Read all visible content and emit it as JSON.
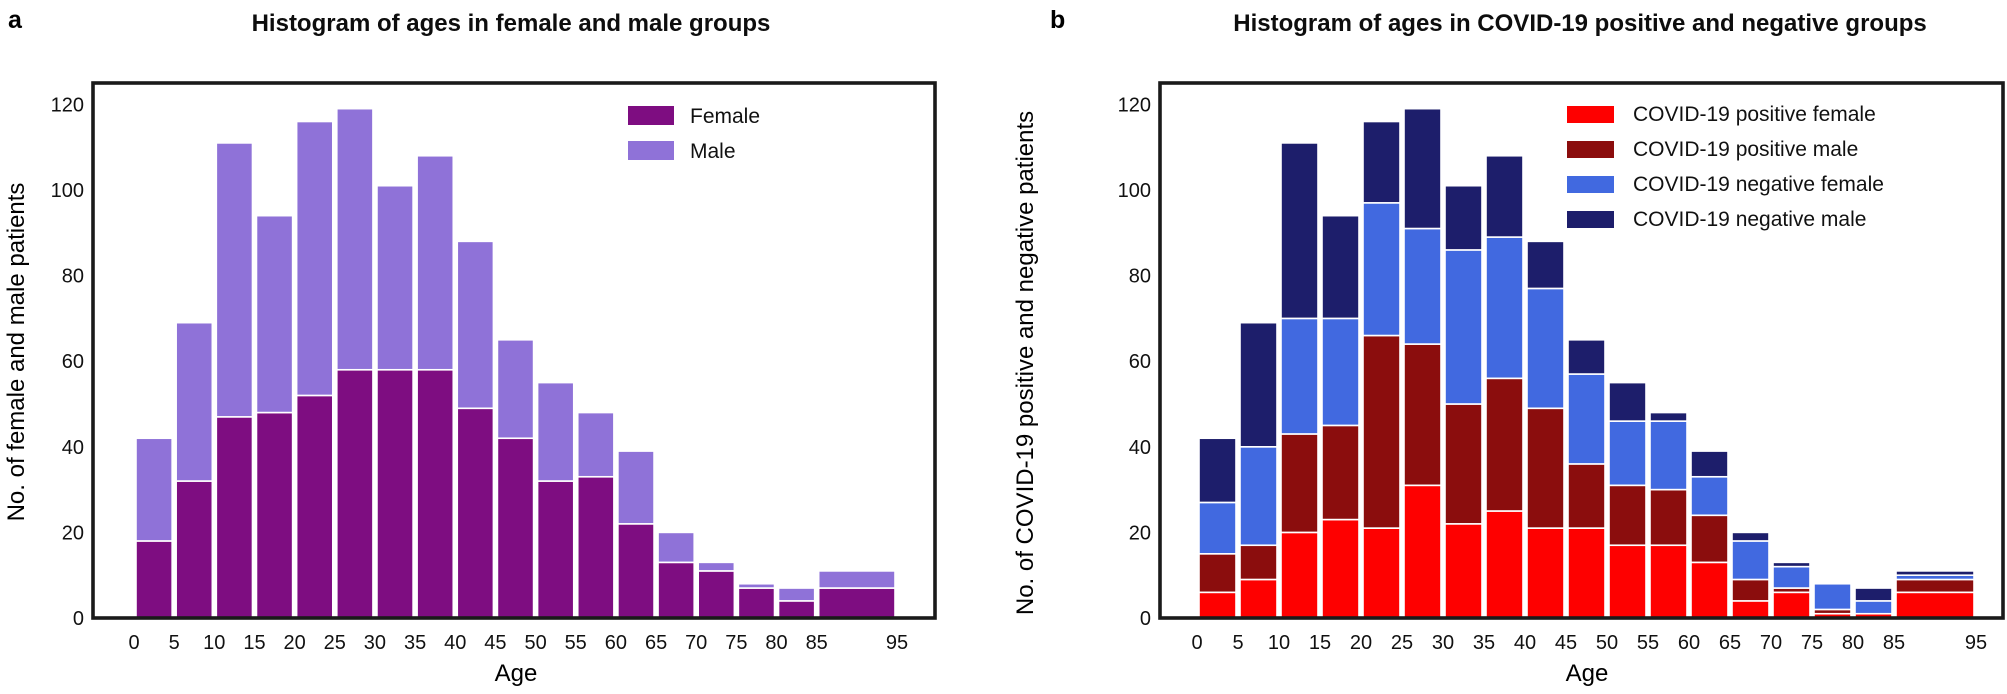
{
  "figure": {
    "background": "#ffffff",
    "frame_color": "#1a1a1a",
    "panels": [
      {
        "letter": "a",
        "title": "Histogram of ages in female and male groups"
      },
      {
        "letter": "b",
        "title": "Histogram of ages in COVID-19 positive and negative groups"
      }
    ]
  },
  "chart_data": [
    {
      "type": "bar",
      "stacked": true,
      "panel_letter": "a",
      "title": "Histogram of ages in female and male groups",
      "xlabel": "Age",
      "ylabel": "No. of female and male patients",
      "bin_edges": [
        0,
        5,
        10,
        15,
        20,
        25,
        30,
        35,
        40,
        45,
        50,
        55,
        60,
        65,
        70,
        75,
        80,
        85,
        95
      ],
      "x_tick_labels": [
        "0",
        "5",
        "10",
        "15",
        "20",
        "25",
        "30",
        "35",
        "40",
        "45",
        "50",
        "55",
        "60",
        "65",
        "70",
        "75",
        "80",
        "85",
        "95"
      ],
      "y_ticks": [
        0,
        20,
        40,
        60,
        80,
        100,
        120
      ],
      "ylim": [
        0,
        125
      ],
      "grid": false,
      "legend_position": "upper right",
      "series": [
        {
          "name": "Female",
          "color": "#7e0d81",
          "values": [
            18,
            32,
            47,
            48,
            52,
            58,
            58,
            58,
            49,
            42,
            32,
            33,
            22,
            13,
            11,
            7,
            4,
            7
          ]
        },
        {
          "name": "Male",
          "color": "#8f72d8",
          "values": [
            24,
            37,
            64,
            46,
            64,
            61,
            43,
            50,
            39,
            23,
            23,
            15,
            17,
            7,
            2,
            1,
            3,
            4
          ]
        }
      ]
    },
    {
      "type": "bar",
      "stacked": true,
      "panel_letter": "b",
      "title": "Histogram of ages in COVID-19 positive and negative groups",
      "xlabel": "Age",
      "ylabel": "No. of COVID-19 positive and negative patients",
      "bin_edges": [
        0,
        5,
        10,
        15,
        20,
        25,
        30,
        35,
        40,
        45,
        50,
        55,
        60,
        65,
        70,
        75,
        80,
        85,
        95
      ],
      "x_tick_labels": [
        "0",
        "5",
        "10",
        "15",
        "20",
        "25",
        "30",
        "35",
        "40",
        "45",
        "50",
        "55",
        "60",
        "65",
        "70",
        "75",
        "80",
        "85",
        "95"
      ],
      "y_ticks": [
        0,
        20,
        40,
        60,
        80,
        100,
        120
      ],
      "ylim": [
        0,
        125
      ],
      "grid": false,
      "legend_position": "upper right",
      "series": [
        {
          "name": "COVID-19 positive female",
          "color": "#fe0000",
          "values": [
            6,
            9,
            20,
            23,
            21,
            31,
            22,
            25,
            21,
            21,
            17,
            17,
            13,
            4,
            6,
            1,
            1,
            6
          ]
        },
        {
          "name": "COVID-19 positive male",
          "color": "#8b0d0d",
          "values": [
            9,
            8,
            23,
            22,
            45,
            33,
            28,
            31,
            28,
            15,
            14,
            13,
            11,
            5,
            1,
            1,
            0,
            3
          ]
        },
        {
          "name": "COVID-19 negative female",
          "color": "#4169e0",
          "values": [
            12,
            23,
            27,
            25,
            31,
            27,
            36,
            33,
            28,
            21,
            15,
            16,
            9,
            9,
            5,
            6,
            3,
            1
          ]
        },
        {
          "name": "COVID-19 negative male",
          "color": "#1d1e6b",
          "values": [
            15,
            29,
            41,
            24,
            19,
            28,
            15,
            19,
            11,
            8,
            9,
            2,
            6,
            2,
            1,
            0,
            3,
            1
          ]
        }
      ]
    }
  ]
}
